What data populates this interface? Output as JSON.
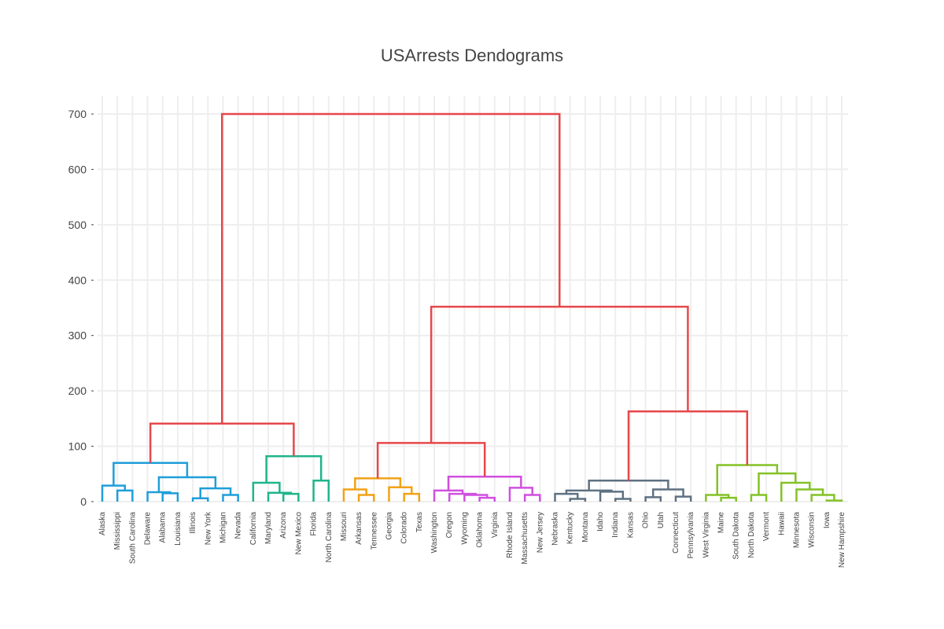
{
  "chart_data": {
    "type": "dendrogram",
    "title": "USArrests Dendograms",
    "xlabel": "",
    "ylabel": "",
    "ylim": [
      0,
      730
    ],
    "yticks": [
      0,
      100,
      200,
      300,
      400,
      500,
      600,
      700
    ],
    "grid": true,
    "leaves": [
      "Alaska",
      "Mississippi",
      "South Carolina",
      "Delaware",
      "Alabama",
      "Louisiana",
      "Illinois",
      "New York",
      "Michigan",
      "Nevada",
      "California",
      "Maryland",
      "Arizona",
      "New Mexico",
      "Florida",
      "North Carolina",
      "Missouri",
      "Arkansas",
      "Tennessee",
      "Georgia",
      "Colorado",
      "Texas",
      "Washington",
      "Oregon",
      "Wyoming",
      "Oklahoma",
      "Virginia",
      "Rhode Island",
      "Massachusetts",
      "New Jersey",
      "Nebraska",
      "Kentucky",
      "Montana",
      "Idaho",
      "Indiana",
      "Kansas",
      "Ohio",
      "Utah",
      "Connecticut",
      "Pennsylvania",
      "West Virginia",
      "Maine",
      "South Dakota",
      "North Dakota",
      "Vermont",
      "Hawaii",
      "Minnesota",
      "Wisconsin",
      "Iowa",
      "New Hampshire"
    ],
    "colors": {
      "top": "#e6474b",
      "cluster_1": "#1f9ed9",
      "cluster_2": "#1eb58c",
      "cluster_3": "#f0a216",
      "cluster_4": "#d14fe0",
      "cluster_5": "#5f7183",
      "cluster_6": "#84c226"
    },
    "links": [
      {
        "a": 0,
        "b": 1,
        "h": 29,
        "color": "cluster_1"
      },
      {
        "a": 2,
        "b": 3,
        "h": 15,
        "color": "cluster_1"
      },
      {
        "a": 50,
        "b": 51,
        "h": 20,
        "color": "cluster_1"
      },
      {
        "a": 4,
        "b": 53,
        "h": 16,
        "color": "cluster_1"
      },
      {
        "a": 7,
        "b": 8,
        "h": 7,
        "color": "cluster_1"
      },
      {
        "a": 9,
        "b": 10,
        "h": 12,
        "color": "cluster_1"
      },
      {
        "a": 55,
        "b": 56,
        "h": 24,
        "color": "cluster_1"
      },
      {
        "a": 54,
        "b": 57,
        "h": 44,
        "color": "cluster_1"
      },
      {
        "a": 52,
        "b": 58,
        "h": 70,
        "color": "cluster_1"
      },
      {
        "a": 13,
        "b": 14,
        "h": 13,
        "color": "cluster_2"
      },
      {
        "a": 12,
        "b": 60,
        "h": 16,
        "color": "cluster_2"
      },
      {
        "a": 11,
        "b": 61,
        "h": 34,
        "color": "cluster_2"
      },
      {
        "a": 15,
        "b": 16,
        "h": 38,
        "color": "cluster_2"
      },
      {
        "a": 62,
        "b": 63,
        "h": 82,
        "color": "cluster_2"
      },
      {
        "a": 59,
        "b": 64,
        "h": 141,
        "color": "top"
      },
      {
        "a": 18,
        "b": 19,
        "h": 13,
        "color": "cluster_3"
      },
      {
        "a": 17,
        "b": 66,
        "h": 22,
        "color": "cluster_3"
      },
      {
        "a": 21,
        "b": 22,
        "h": 14,
        "color": "cluster_3"
      },
      {
        "a": 20,
        "b": 68,
        "h": 26,
        "color": "cluster_3"
      },
      {
        "a": 67,
        "b": 69,
        "h": 42,
        "color": "cluster_3"
      },
      {
        "a": 26,
        "b": 27,
        "h": 8,
        "color": "cluster_4"
      },
      {
        "a": 25,
        "b": 71,
        "h": 13,
        "color": "cluster_4"
      },
      {
        "a": 24,
        "b": 72,
        "h": 14,
        "color": "cluster_4"
      },
      {
        "a": 23,
        "b": 73,
        "h": 20,
        "color": "cluster_4"
      },
      {
        "a": 29,
        "b": 30,
        "h": 12,
        "color": "cluster_4"
      },
      {
        "a": 28,
        "b": 75,
        "h": 25,
        "color": "cluster_4"
      },
      {
        "a": 74,
        "b": 76,
        "h": 45,
        "color": "cluster_4"
      },
      {
        "a": 70,
        "b": 77,
        "h": 106,
        "color": "top"
      },
      {
        "a": 32,
        "b": 33,
        "h": 5,
        "color": "cluster_5"
      },
      {
        "a": 31,
        "b": 79,
        "h": 14,
        "color": "cluster_5"
      },
      {
        "a": 35,
        "b": 36,
        "h": 5,
        "color": "cluster_5"
      },
      {
        "a": 34,
        "b": 81,
        "h": 18,
        "color": "cluster_5"
      },
      {
        "a": 80,
        "b": 82,
        "h": 20,
        "color": "cluster_5"
      },
      {
        "a": 37,
        "b": 38,
        "h": 8,
        "color": "cluster_5"
      },
      {
        "a": 39,
        "b": 40,
        "h": 9,
        "color": "cluster_5"
      },
      {
        "a": 84,
        "b": 85,
        "h": 22,
        "color": "cluster_5"
      },
      {
        "a": 83,
        "b": 86,
        "h": 38,
        "color": "cluster_5"
      },
      {
        "a": 42,
        "b": 43,
        "h": 7,
        "color": "cluster_6"
      },
      {
        "a": 41,
        "b": 88,
        "h": 12,
        "color": "cluster_6"
      },
      {
        "a": 44,
        "b": 45,
        "h": 12,
        "color": "cluster_6"
      },
      {
        "a": 49,
        "b": 50,
        "h": 2,
        "color": "cluster_6"
      },
      {
        "a": 91,
        "b": 91,
        "h": 0,
        "color": "skip"
      }
    ]
  }
}
